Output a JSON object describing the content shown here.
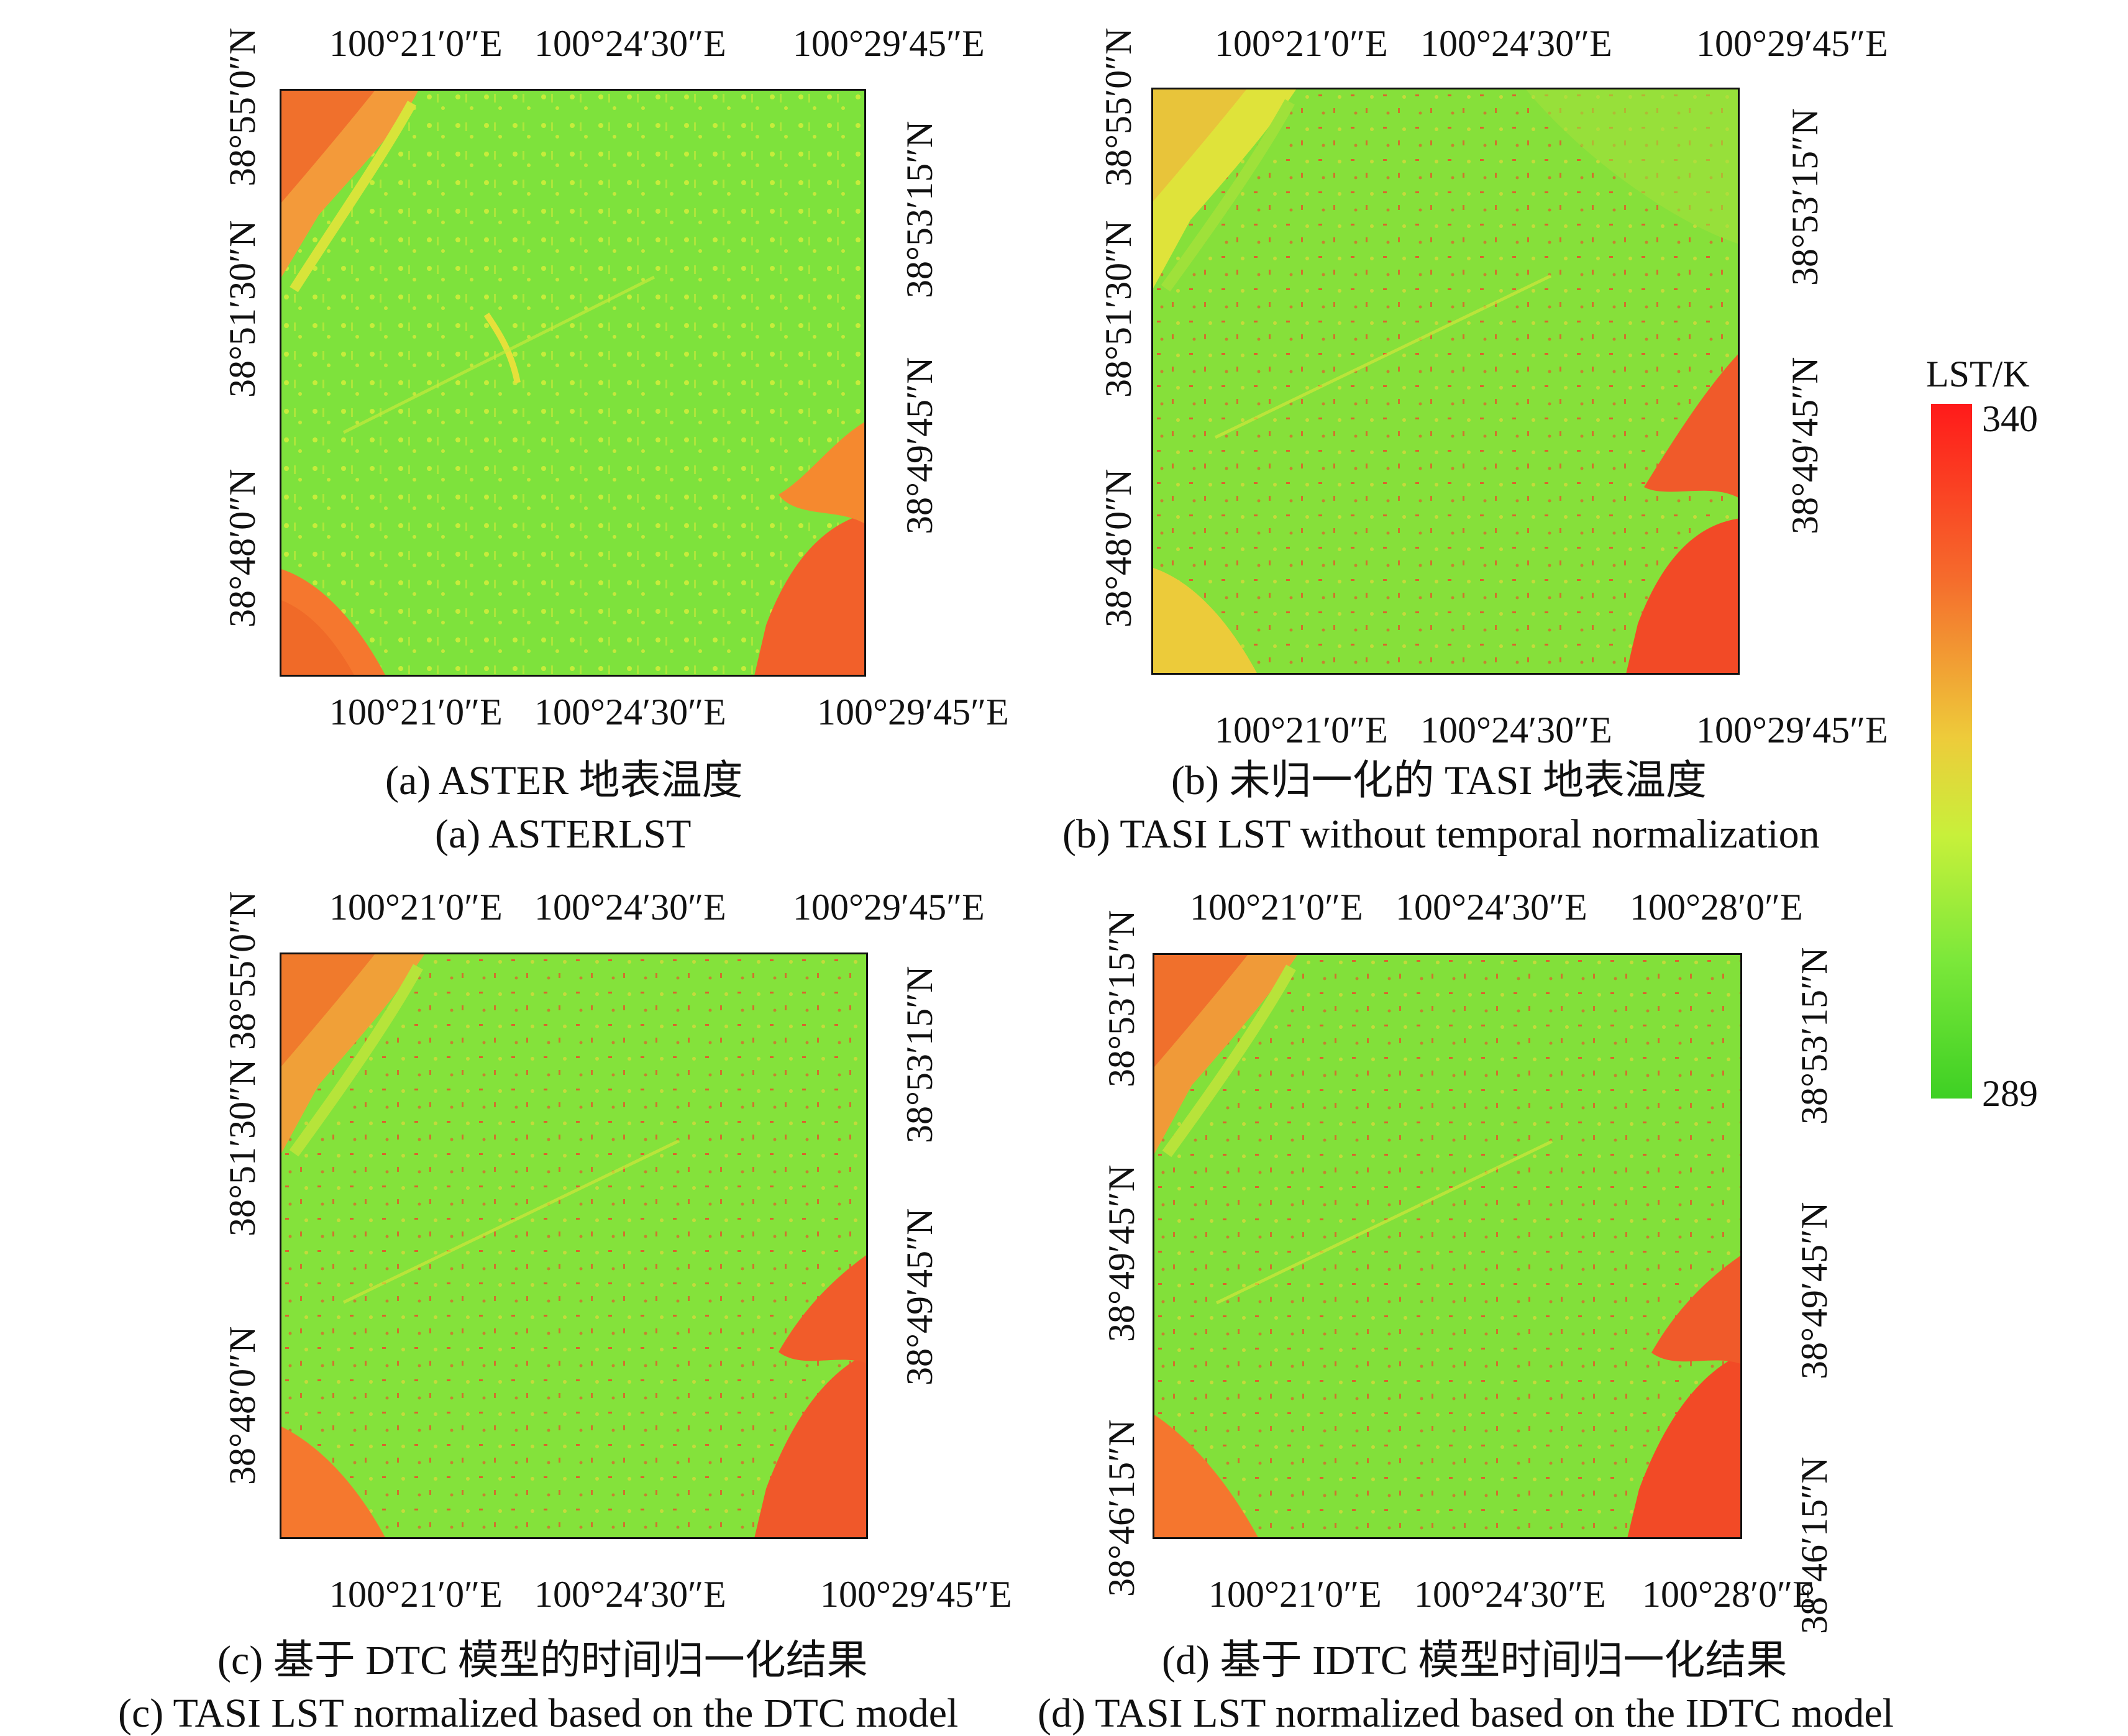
{
  "colorbar": {
    "title": "LST/K",
    "max_label": "340",
    "min_label": "289",
    "max_color": "#ff1a1a",
    "min_color": "#3ed024"
  },
  "panels": [
    {
      "id": "a",
      "top_lon": [
        "100°21′0″E",
        "100°24′30″E",
        "100°29′45″E"
      ],
      "bottom_lon": [
        "100°21′0″E",
        "100°24′30″E",
        "100°29′45″E"
      ],
      "left_lat": [
        "38°55′0″N",
        "38°51′30″N",
        "38°48′0″N"
      ],
      "right_lat": [
        "38°53′15″N",
        "38°49′45″N"
      ],
      "caption_cn": "(a) ASTER 地表温度",
      "caption_en": "(a) ASTERLST"
    },
    {
      "id": "b",
      "top_lon": [
        "100°21′0″E",
        "100°24′30″E",
        "100°29′45″E"
      ],
      "bottom_lon": [
        "100°21′0″E",
        "100°24′30″E",
        "100°29′45″E"
      ],
      "left_lat": [
        "38°55′0″N",
        "38°51′30″N",
        "38°48′0″N"
      ],
      "right_lat": [
        "38°53′15″N",
        "38°49′45″N"
      ],
      "caption_cn": "(b) 未归一化的 TASI 地表温度",
      "caption_en": "(b) TASI LST without temporal normalization"
    },
    {
      "id": "c",
      "top_lon": [
        "100°21′0″E",
        "100°24′30″E",
        "100°29′45″E"
      ],
      "bottom_lon": [
        "100°21′0″E",
        "100°24′30″E",
        "100°29′45″E"
      ],
      "left_lat": [
        "38°55′0″N",
        "38°51′30″N",
        "38°48′0″N"
      ],
      "right_lat": [
        "38°53′15″N",
        "38°49′45″N"
      ],
      "caption_cn": "(c) 基于 DTC 模型的时间归一化结果",
      "caption_en": "(c) TASI LST normalized based on the DTC model"
    },
    {
      "id": "d",
      "top_lon": [
        "100°21′0″E",
        "100°24′30″E",
        "100°28′0″E"
      ],
      "bottom_lon": [
        "100°21′0″E",
        "100°24′30″E",
        "100°28′0″E"
      ],
      "left_lat": [
        "38°53′15″N",
        "38°49′45″N",
        "38°46′15″N"
      ],
      "right_lat": [
        "38°53′15″N",
        "38°49′45″N",
        "38°46′15″N"
      ],
      "caption_cn": "(d) 基于 IDTC 模型时间归一化结果",
      "caption_en": "(d) TASI LST normalized based on the IDTC model"
    }
  ]
}
